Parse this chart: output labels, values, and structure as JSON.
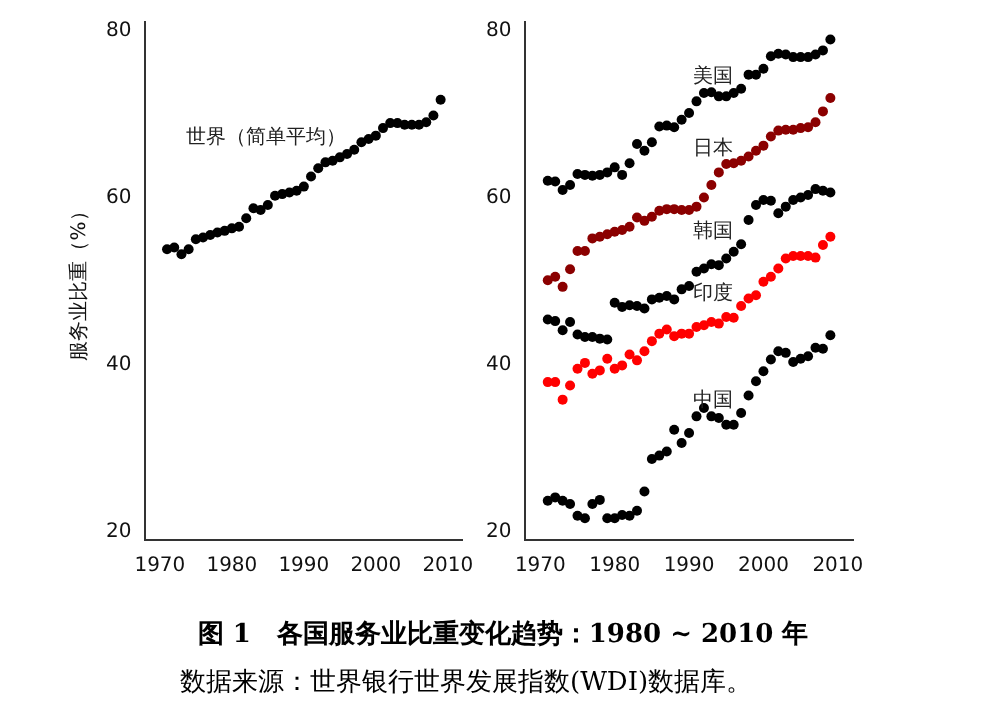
{
  "chart_data": [
    {
      "type": "scatter",
      "title": "图 1　各国服务业比重变化趋势：1980 ~ 2010 年",
      "ylabel": "服务业比重（%）",
      "marker": "circle",
      "grid": false,
      "legend": false,
      "x": [
        1971,
        1972,
        1973,
        1974,
        1975,
        1976,
        1977,
        1978,
        1979,
        1980,
        1981,
        1982,
        1983,
        1984,
        1985,
        1986,
        1987,
        1988,
        1989,
        1990,
        1991,
        1992,
        1993,
        1994,
        1995,
        1996,
        1997,
        1998,
        1999,
        2000,
        2001,
        2002,
        2003,
        2004,
        2005,
        2006,
        2007,
        2008,
        2009
      ],
      "xlim": [
        1968,
        2012
      ],
      "xticks": [
        1970,
        1980,
        1990,
        2000,
        2010
      ],
      "ylim": [
        19,
        81
      ],
      "yticks": [
        20,
        40,
        60,
        80
      ],
      "series": [
        {
          "name": "世界（简单平均）",
          "color": "#000000",
          "values": [
            53.8,
            54,
            53.2,
            53.8,
            55,
            55.2,
            55.5,
            55.8,
            56,
            56.3,
            56.5,
            57.5,
            58.7,
            58.5,
            59.1,
            60.2,
            60.4,
            60.6,
            60.8,
            61.3,
            62.5,
            63.5,
            64.2,
            64.4,
            64.8,
            65.2,
            65.7,
            66.6,
            67,
            67.4,
            68.3,
            68.9,
            68.9,
            68.7,
            68.7,
            68.7,
            69,
            69.8,
            71.7
          ]
        }
      ],
      "annotations": [
        "数据来源：世界银行世界发展指数(WDI)数据库。"
      ]
    },
    {
      "type": "scatter",
      "marker": "circle",
      "grid": false,
      "legend": false,
      "x": [
        1971,
        1972,
        1973,
        1974,
        1975,
        1976,
        1977,
        1978,
        1979,
        1980,
        1981,
        1982,
        1983,
        1984,
        1985,
        1986,
        1987,
        1988,
        1989,
        1990,
        1991,
        1992,
        1993,
        1994,
        1995,
        1996,
        1997,
        1998,
        1999,
        2000,
        2001,
        2002,
        2003,
        2004,
        2005,
        2006,
        2007,
        2008,
        2009
      ],
      "xlim": [
        1968,
        2012
      ],
      "xticks": [
        1970,
        1980,
        1990,
        2000,
        2010
      ],
      "ylim": [
        19,
        81
      ],
      "yticks": [
        20,
        40,
        60,
        80
      ],
      "series": [
        {
          "name": "美国",
          "color": "#000000",
          "values": [
            62,
            61.9,
            60.9,
            61.5,
            62.8,
            62.7,
            62.6,
            62.7,
            63,
            63.6,
            62.7,
            64.1,
            66.4,
            65.6,
            66.6,
            68.5,
            68.6,
            68.4,
            69.3,
            70.1,
            71.5,
            72.5,
            72.6,
            72.1,
            72.1,
            72.5,
            73,
            74.7,
            74.7,
            75.4,
            76.9,
            77.2,
            77.1,
            76.8,
            76.8,
            76.8,
            77.1,
            77.6,
            78.9
          ]
        },
        {
          "name": "日本",
          "color": "#8b0000",
          "values": [
            50.1,
            50.5,
            49.3,
            51.4,
            53.6,
            53.6,
            55.1,
            55.3,
            55.6,
            55.9,
            56.1,
            56.5,
            57.6,
            57.2,
            57.7,
            58.4,
            58.6,
            58.6,
            58.5,
            58.5,
            58.9,
            60,
            61.5,
            63,
            64,
            64.1,
            64.4,
            64.9,
            65.6,
            66.2,
            67.3,
            68,
            68.1,
            68.1,
            68.3,
            68.4,
            69,
            70.3,
            71.9
          ]
        },
        {
          "name": "韩国",
          "color": "#000000",
          "values": [
            45.4,
            45.2,
            44.1,
            45.1,
            43.6,
            43.3,
            43.3,
            43.1,
            43,
            47.4,
            46.9,
            47.1,
            47,
            46.7,
            47.8,
            48,
            48.2,
            47.8,
            49,
            49.4,
            51.1,
            51.5,
            52,
            51.9,
            52.7,
            53.5,
            54.4,
            57.3,
            59.1,
            59.7,
            59.6,
            58.1,
            58.9,
            59.7,
            60,
            60.3,
            61,
            60.8,
            60.6
          ]
        },
        {
          "name": "印度",
          "color": "#ff0000",
          "values": [
            37.9,
            37.9,
            35.8,
            37.5,
            39.5,
            40.2,
            38.9,
            39.3,
            40.7,
            39.5,
            39.9,
            41.2,
            40.5,
            41.6,
            42.8,
            43.7,
            44.2,
            43.4,
            43.7,
            43.7,
            44.5,
            44.7,
            45.1,
            44.9,
            45.7,
            45.6,
            47,
            47.9,
            48.3,
            49.9,
            50.5,
            51.5,
            52.7,
            53,
            53,
            53,
            52.8,
            54.3,
            55.3
          ]
        },
        {
          "name": "中国",
          "color": "#000000",
          "values": [
            23.7,
            24.1,
            23.7,
            23.3,
            21.9,
            21.6,
            23.3,
            23.8,
            21.6,
            21.6,
            22,
            21.9,
            22.5,
            24.8,
            28.7,
            29.1,
            29.6,
            32.2,
            30.6,
            31.8,
            33.8,
            34.8,
            33.8,
            33.6,
            32.8,
            32.8,
            34.2,
            36.3,
            38,
            39.2,
            40.6,
            41.6,
            41.4,
            40.3,
            40.7,
            41,
            42,
            41.9,
            43.5
          ]
        }
      ]
    }
  ]
}
